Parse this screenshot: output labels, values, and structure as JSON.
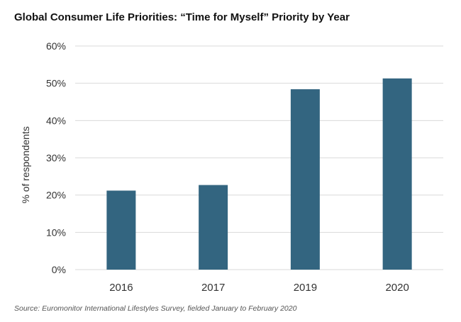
{
  "colors": {
    "bar": "#336580",
    "grid": "#d9d9d9",
    "tick_text": "#333333"
  },
  "source": "Source: Euromonitor International Lifestyles Survey, fielded January to February 2020",
  "chart_data": {
    "type": "bar",
    "title": "Global Consumer Life Priorities: “Time for Myself” Priority by Year",
    "xlabel": "",
    "ylabel": "% of respondents",
    "categories": [
      "2016",
      "2017",
      "2019",
      "2020"
    ],
    "values": [
      21.2,
      22.7,
      48.4,
      51.3
    ],
    "ylim": [
      0,
      60
    ],
    "yticks": [
      0,
      10,
      20,
      30,
      40,
      50,
      60
    ],
    "ytick_labels": [
      "0%",
      "10%",
      "20%",
      "30%",
      "40%",
      "50%",
      "60%"
    ],
    "grid": true,
    "legend": "none"
  }
}
